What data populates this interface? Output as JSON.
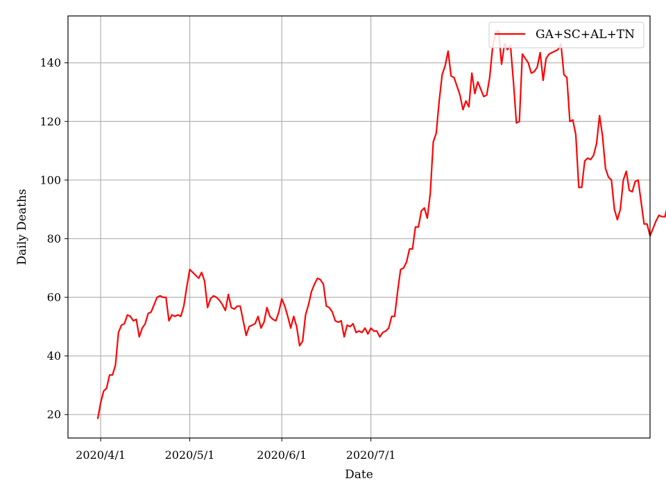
{
  "chart_data": {
    "type": "line",
    "title": "",
    "xlabel": "Date",
    "ylabel": "Daily Deaths",
    "x_start": "2020-03-31",
    "x_end": "2020-09-26",
    "xlim": [
      "2020-03-21",
      "2020-10-03"
    ],
    "ylim": [
      12,
      156
    ],
    "x_ticks": [
      {
        "date": "2020-04-01",
        "label": "2020/4/1"
      },
      {
        "date": "2020-05-01",
        "label": "2020/5/1"
      },
      {
        "date": "2020-06-01",
        "label": "2020/6/1"
      },
      {
        "date": "2020-07-01",
        "label": "2020/7/1"
      }
    ],
    "y_ticks": [
      20,
      40,
      60,
      80,
      100,
      120,
      140
    ],
    "grid": true,
    "legend_position": "upper right",
    "series": [
      {
        "name": "GA+SC+AL+TN",
        "color": "#ff0000",
        "values": [
          18.5,
          24,
          28,
          29,
          33.5,
          33.5,
          37,
          48,
          50.5,
          51,
          54,
          53.5,
          52,
          52.5,
          46.5,
          49.5,
          51,
          54.5,
          55,
          57.5,
          60,
          60.5,
          60,
          60,
          52,
          54,
          53.5,
          54,
          53.5,
          57,
          63.5,
          69.5,
          68.5,
          67.5,
          66.5,
          68.5,
          65.5,
          56.5,
          59.5,
          60.5,
          60,
          59,
          57.5,
          55.5,
          61,
          56.5,
          56,
          57,
          57,
          52,
          47,
          50,
          50.5,
          51,
          53.5,
          49.5,
          51.5,
          56.5,
          53.5,
          52.5,
          52,
          55,
          59.5,
          57,
          53.5,
          49.5,
          53.5,
          50,
          43.5,
          45,
          54,
          57.5,
          62,
          64.5,
          66.5,
          66,
          64.5,
          57,
          56.5,
          55,
          52,
          51.5,
          52,
          46.5,
          50.5,
          50,
          51,
          48,
          48.5,
          48,
          49.5,
          47.5,
          49.5,
          48.5,
          48.5,
          46.5,
          48,
          48.5,
          49.5,
          53.5,
          53.5,
          62,
          69.5,
          70,
          72,
          76.5,
          76.5,
          84,
          84,
          89.5,
          90.5,
          87,
          95.5,
          113,
          116,
          127,
          136,
          139,
          144,
          135.5,
          135,
          132,
          129,
          124,
          127,
          125,
          136.5,
          129.5,
          133.5,
          131,
          128.5,
          129,
          135,
          145.5,
          150.5,
          151,
          139.5,
          146.5,
          144.5,
          146,
          133.5,
          119.5,
          120,
          143,
          141.5,
          140,
          136.5,
          137,
          138.5,
          143.5,
          134,
          141.5,
          143,
          143.5,
          144,
          144.5,
          146.5,
          136,
          135,
          120,
          120.5,
          115.5,
          97.5,
          97.5,
          106.5,
          107.5,
          107,
          108.5,
          112.5,
          122,
          115,
          104,
          101,
          100,
          90,
          86.5,
          90,
          100,
          103,
          96.5,
          96,
          99.5,
          100,
          92.5,
          85,
          85,
          81,
          83.5,
          86,
          88,
          87.5,
          87.5,
          91.5,
          97.5,
          96,
          92.5,
          89,
          84.5,
          84.5,
          81.5,
          81,
          81.5,
          83.5,
          86,
          90.5,
          84.5,
          88.5,
          93,
          90.5,
          89,
          93
        ]
      }
    ]
  }
}
